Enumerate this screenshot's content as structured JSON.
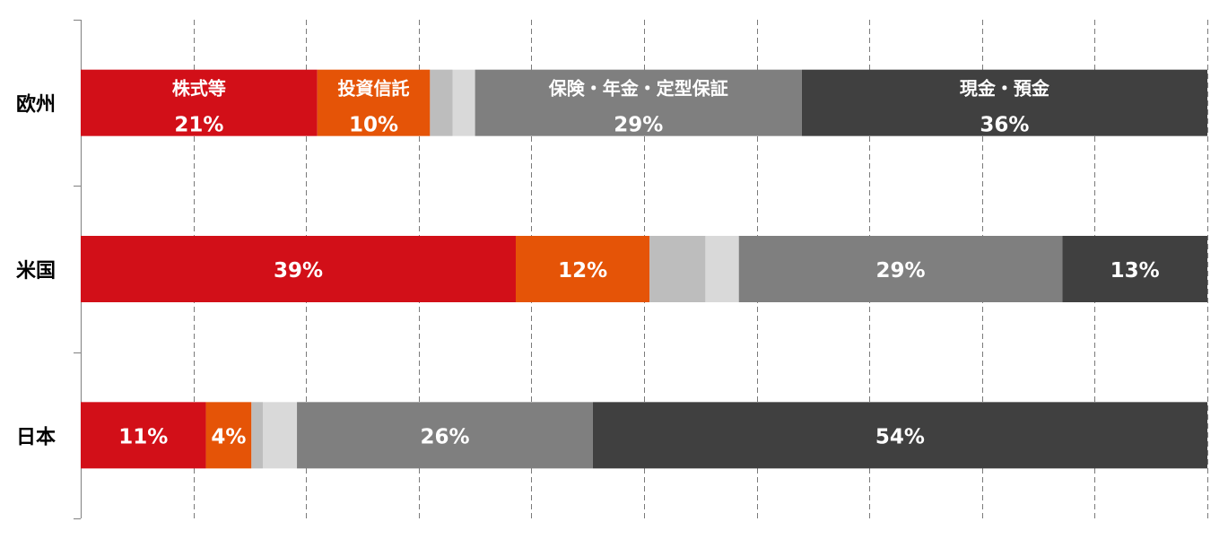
{
  "chart_data": {
    "type": "bar",
    "orientation": "horizontal",
    "stacked": true,
    "percent": true,
    "categories": [
      "欧州",
      "米国",
      "日本"
    ],
    "xlim": [
      0,
      100
    ],
    "grid": true,
    "legend": "none",
    "series": [
      {
        "name": "株式等",
        "color": "#d20f18",
        "values": [
          21,
          39,
          11
        ],
        "labels": [
          "21%",
          "39%",
          "11%"
        ]
      },
      {
        "name": "投資信託",
        "color": "#e55407",
        "values": [
          10,
          12,
          4
        ],
        "labels": [
          "10%",
          "12%",
          "4%"
        ]
      },
      {
        "color": "#bdbdbd",
        "values": [
          2,
          5,
          1
        ],
        "labels": [
          "",
          "",
          ""
        ]
      },
      {
        "color": "#d9d9d9",
        "values": [
          2,
          3,
          3
        ],
        "labels": [
          "",
          "",
          ""
        ]
      },
      {
        "name": "保険・年金・定型保証",
        "color": "#7f7f7f",
        "values": [
          29,
          29,
          26
        ],
        "labels": [
          "29%",
          "29%",
          "26%"
        ]
      },
      {
        "name": "現金・預金",
        "color": "#404040",
        "values": [
          36,
          13,
          54
        ],
        "labels": [
          "36%",
          "13%",
          "54%"
        ]
      }
    ],
    "in_bar_series_names_on": "欧州"
  }
}
